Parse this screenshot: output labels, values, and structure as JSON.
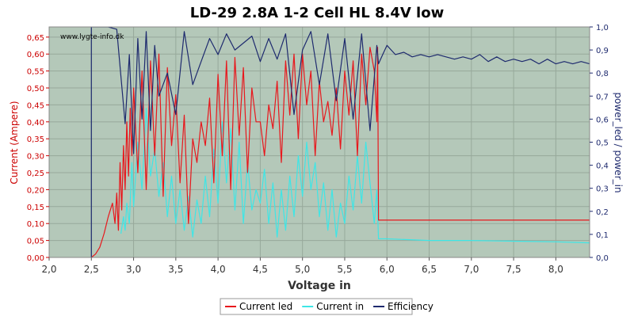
{
  "chart_data": {
    "type": "line",
    "title": "LD-29 2.8A 1-2 Cell HL 8.4V low",
    "watermark": "www.lygte-info.dk",
    "xlabel": "Voltage in",
    "ylabel_left": "Current (Ampere)",
    "ylabel_right": "power_led / power_in",
    "xlim": [
      2.0,
      8.4
    ],
    "ylim_left": [
      0.0,
      0.68
    ],
    "ylim_right": [
      0.0,
      1.0
    ],
    "x_ticks": [
      "2,0",
      "2,5",
      "3,0",
      "3,5",
      "4,0",
      "4,5",
      "5,0",
      "5,5",
      "6,0",
      "6,5",
      "7,0",
      "7,5",
      "8,0"
    ],
    "y_left_ticks": [
      "0,00",
      "0,05",
      "0,10",
      "0,15",
      "0,20",
      "0,25",
      "0,30",
      "0,35",
      "0,40",
      "0,45",
      "0,50",
      "0,55",
      "0,60",
      "0,65"
    ],
    "y_right_ticks": [
      "0,0",
      "0,1",
      "0,2",
      "0,3",
      "0,4",
      "0,5",
      "0,6",
      "0,7",
      "0,8",
      "0,9",
      "1,0"
    ],
    "grid": true,
    "legend_position": "bottom",
    "colors": {
      "plot_bg": "#b4c8b9",
      "current_led": "#e8171c",
      "current_in": "#3ee6e6",
      "efficiency": "#1e2a6e",
      "left_axis": "#cc0000",
      "right_axis": "#1e2a6e"
    },
    "series": [
      {
        "name": "Current led",
        "axis": "left",
        "color": "#e8171c",
        "x": [
          2.5,
          2.55,
          2.6,
          2.65,
          2.7,
          2.75,
          2.78,
          2.8,
          2.82,
          2.84,
          2.86,
          2.88,
          2.9,
          2.92,
          2.94,
          2.96,
          2.98,
          3.0,
          3.05,
          3.1,
          3.15,
          3.2,
          3.25,
          3.3,
          3.35,
          3.4,
          3.45,
          3.5,
          3.55,
          3.6,
          3.65,
          3.7,
          3.75,
          3.8,
          3.85,
          3.9,
          3.95,
          4.0,
          4.05,
          4.1,
          4.15,
          4.2,
          4.25,
          4.3,
          4.35,
          4.4,
          4.45,
          4.5,
          4.55,
          4.6,
          4.65,
          4.7,
          4.75,
          4.8,
          4.85,
          4.9,
          4.95,
          5.0,
          5.05,
          5.1,
          5.15,
          5.2,
          5.25,
          5.3,
          5.35,
          5.4,
          5.45,
          5.5,
          5.55,
          5.6,
          5.65,
          5.7,
          5.75,
          5.8,
          5.85,
          5.88,
          5.89,
          5.9,
          6.5,
          7.0,
          7.5,
          8.0,
          8.4
        ],
        "values": [
          0.0,
          0.01,
          0.03,
          0.07,
          0.12,
          0.16,
          0.1,
          0.19,
          0.08,
          0.28,
          0.14,
          0.33,
          0.2,
          0.4,
          0.24,
          0.44,
          0.3,
          0.5,
          0.25,
          0.55,
          0.2,
          0.58,
          0.3,
          0.6,
          0.18,
          0.56,
          0.33,
          0.48,
          0.22,
          0.42,
          0.1,
          0.35,
          0.28,
          0.4,
          0.33,
          0.47,
          0.22,
          0.54,
          0.3,
          0.58,
          0.2,
          0.59,
          0.36,
          0.56,
          0.25,
          0.5,
          0.4,
          0.4,
          0.3,
          0.45,
          0.38,
          0.52,
          0.28,
          0.58,
          0.42,
          0.6,
          0.35,
          0.6,
          0.45,
          0.55,
          0.3,
          0.52,
          0.4,
          0.46,
          0.36,
          0.5,
          0.32,
          0.55,
          0.42,
          0.58,
          0.3,
          0.6,
          0.45,
          0.62,
          0.55,
          0.4,
          0.62,
          0.11,
          0.11,
          0.11,
          0.11,
          0.11,
          0.11
        ]
      },
      {
        "name": "Current in",
        "axis": "left",
        "color": "#3ee6e6",
        "x": [
          2.85,
          2.88,
          2.9,
          2.92,
          2.95,
          2.98,
          3.0,
          3.05,
          3.1,
          3.15,
          3.2,
          3.25,
          3.3,
          3.35,
          3.4,
          3.45,
          3.5,
          3.55,
          3.6,
          3.65,
          3.7,
          3.75,
          3.8,
          3.85,
          3.9,
          3.95,
          4.0,
          4.05,
          4.1,
          4.15,
          4.2,
          4.25,
          4.3,
          4.35,
          4.4,
          4.45,
          4.5,
          4.55,
          4.6,
          4.65,
          4.7,
          4.75,
          4.8,
          4.85,
          4.9,
          4.95,
          5.0,
          5.05,
          5.1,
          5.15,
          5.2,
          5.25,
          5.3,
          5.35,
          5.4,
          5.45,
          5.5,
          5.55,
          5.6,
          5.65,
          5.7,
          5.75,
          5.8,
          5.85,
          5.88,
          5.9,
          6.0,
          6.5,
          7.0,
          7.5,
          8.0,
          8.4
        ],
        "values": [
          0.07,
          0.12,
          0.08,
          0.16,
          0.1,
          0.28,
          0.15,
          0.34,
          0.2,
          0.44,
          0.24,
          0.32,
          0.18,
          0.28,
          0.12,
          0.24,
          0.1,
          0.2,
          0.08,
          0.18,
          0.06,
          0.17,
          0.1,
          0.24,
          0.12,
          0.32,
          0.16,
          0.4,
          0.22,
          0.38,
          0.14,
          0.34,
          0.1,
          0.28,
          0.14,
          0.2,
          0.16,
          0.26,
          0.1,
          0.22,
          0.06,
          0.2,
          0.08,
          0.24,
          0.12,
          0.3,
          0.18,
          0.34,
          0.2,
          0.28,
          0.12,
          0.22,
          0.08,
          0.2,
          0.06,
          0.16,
          0.1,
          0.24,
          0.14,
          0.3,
          0.16,
          0.34,
          0.22,
          0.1,
          0.2,
          0.055,
          0.055,
          0.05,
          0.05,
          0.048,
          0.046,
          0.043
        ]
      },
      {
        "name": "Efficiency",
        "axis": "right",
        "color": "#1e2a6e",
        "x": [
          2.5,
          2.5,
          2.7,
          2.8,
          2.9,
          2.95,
          3.0,
          3.05,
          3.1,
          3.15,
          3.2,
          3.25,
          3.3,
          3.4,
          3.5,
          3.6,
          3.7,
          3.8,
          3.9,
          4.0,
          4.1,
          4.2,
          4.3,
          4.4,
          4.5,
          4.6,
          4.7,
          4.8,
          4.9,
          5.0,
          5.1,
          5.2,
          5.3,
          5.4,
          5.5,
          5.6,
          5.7,
          5.8,
          5.88,
          5.9,
          5.95,
          6.0,
          6.05,
          6.1,
          6.2,
          6.3,
          6.4,
          6.5,
          6.6,
          6.7,
          6.8,
          6.9,
          7.0,
          7.1,
          7.2,
          7.3,
          7.4,
          7.5,
          7.6,
          7.7,
          7.8,
          7.9,
          8.0,
          8.1,
          8.2,
          8.3,
          8.4
        ],
        "values": [
          0.0,
          1.0,
          1.0,
          0.99,
          0.58,
          0.88,
          0.45,
          0.95,
          0.6,
          0.98,
          0.55,
          0.92,
          0.7,
          0.8,
          0.62,
          0.98,
          0.75,
          0.85,
          0.95,
          0.88,
          0.97,
          0.9,
          0.93,
          0.96,
          0.85,
          0.95,
          0.86,
          0.97,
          0.62,
          0.9,
          0.98,
          0.75,
          0.97,
          0.68,
          0.95,
          0.6,
          0.97,
          0.55,
          0.92,
          0.84,
          0.88,
          0.92,
          0.9,
          0.88,
          0.89,
          0.87,
          0.88,
          0.87,
          0.88,
          0.87,
          0.86,
          0.87,
          0.86,
          0.88,
          0.85,
          0.87,
          0.85,
          0.86,
          0.85,
          0.86,
          0.84,
          0.86,
          0.84,
          0.85,
          0.84,
          0.85,
          0.84
        ]
      }
    ]
  }
}
